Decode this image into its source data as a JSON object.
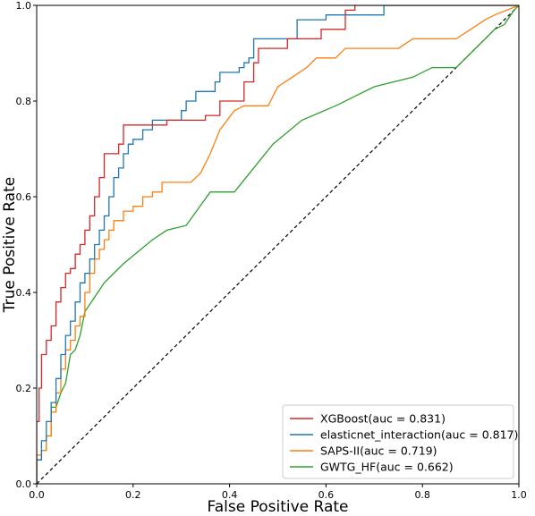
{
  "chart_data": {
    "type": "line",
    "xlabel": "False Positive Rate",
    "ylabel": "True Positive Rate",
    "xlim": [
      0,
      1
    ],
    "ylim": [
      0,
      1
    ],
    "xticks": [
      "0.0",
      "0.2",
      "0.4",
      "0.6",
      "0.8",
      "1.0"
    ],
    "yticks": [
      "0.0",
      "0.2",
      "0.4",
      "0.6",
      "0.8",
      "1.0"
    ],
    "grid": false,
    "legend_position": "bottom-right",
    "diagonal": {
      "style": "dashed",
      "color": "#000000"
    },
    "series": [
      {
        "name": "XGBoost(auc = 0.831)",
        "color": "#d62728",
        "points": [
          [
            0,
            0
          ],
          [
            0,
            0.13
          ],
          [
            0.005,
            0.13
          ],
          [
            0.005,
            0.2
          ],
          [
            0.01,
            0.2
          ],
          [
            0.01,
            0.27
          ],
          [
            0.02,
            0.27
          ],
          [
            0.02,
            0.3
          ],
          [
            0.03,
            0.3
          ],
          [
            0.03,
            0.33
          ],
          [
            0.04,
            0.33
          ],
          [
            0.04,
            0.38
          ],
          [
            0.05,
            0.38
          ],
          [
            0.05,
            0.41
          ],
          [
            0.06,
            0.41
          ],
          [
            0.06,
            0.44
          ],
          [
            0.07,
            0.44
          ],
          [
            0.07,
            0.45
          ],
          [
            0.08,
            0.45
          ],
          [
            0.08,
            0.48
          ],
          [
            0.09,
            0.48
          ],
          [
            0.09,
            0.5
          ],
          [
            0.1,
            0.5
          ],
          [
            0.1,
            0.53
          ],
          [
            0.11,
            0.53
          ],
          [
            0.11,
            0.56
          ],
          [
            0.12,
            0.56
          ],
          [
            0.12,
            0.6
          ],
          [
            0.13,
            0.6
          ],
          [
            0.13,
            0.64
          ],
          [
            0.14,
            0.64
          ],
          [
            0.14,
            0.69
          ],
          [
            0.17,
            0.69
          ],
          [
            0.17,
            0.71
          ],
          [
            0.18,
            0.71
          ],
          [
            0.18,
            0.75
          ],
          [
            0.27,
            0.75
          ],
          [
            0.27,
            0.76
          ],
          [
            0.35,
            0.76
          ],
          [
            0.35,
            0.77
          ],
          [
            0.38,
            0.77
          ],
          [
            0.38,
            0.8
          ],
          [
            0.43,
            0.8
          ],
          [
            0.43,
            0.84
          ],
          [
            0.45,
            0.84
          ],
          [
            0.45,
            0.88
          ],
          [
            0.46,
            0.88
          ],
          [
            0.46,
            0.91
          ],
          [
            0.52,
            0.91
          ],
          [
            0.52,
            0.93
          ],
          [
            0.59,
            0.93
          ],
          [
            0.59,
            0.95
          ],
          [
            0.64,
            0.95
          ],
          [
            0.64,
            0.99
          ],
          [
            0.66,
            0.99
          ],
          [
            0.66,
            1
          ],
          [
            1,
            1
          ]
        ]
      },
      {
        "name": "elasticnet_interaction(auc = 0.817)",
        "color": "#1f77b4",
        "points": [
          [
            0,
            0
          ],
          [
            0,
            0.05
          ],
          [
            0.01,
            0.05
          ],
          [
            0.01,
            0.09
          ],
          [
            0.02,
            0.09
          ],
          [
            0.02,
            0.13
          ],
          [
            0.03,
            0.13
          ],
          [
            0.03,
            0.17
          ],
          [
            0.04,
            0.17
          ],
          [
            0.04,
            0.22
          ],
          [
            0.05,
            0.22
          ],
          [
            0.05,
            0.27
          ],
          [
            0.06,
            0.27
          ],
          [
            0.06,
            0.31
          ],
          [
            0.07,
            0.31
          ],
          [
            0.07,
            0.34
          ],
          [
            0.08,
            0.34
          ],
          [
            0.08,
            0.38
          ],
          [
            0.09,
            0.38
          ],
          [
            0.09,
            0.42
          ],
          [
            0.1,
            0.42
          ],
          [
            0.1,
            0.44
          ],
          [
            0.11,
            0.44
          ],
          [
            0.11,
            0.47
          ],
          [
            0.12,
            0.47
          ],
          [
            0.12,
            0.5
          ],
          [
            0.13,
            0.5
          ],
          [
            0.13,
            0.53
          ],
          [
            0.14,
            0.53
          ],
          [
            0.14,
            0.56
          ],
          [
            0.15,
            0.56
          ],
          [
            0.15,
            0.6
          ],
          [
            0.16,
            0.6
          ],
          [
            0.16,
            0.64
          ],
          [
            0.17,
            0.64
          ],
          [
            0.17,
            0.66
          ],
          [
            0.18,
            0.66
          ],
          [
            0.18,
            0.69
          ],
          [
            0.19,
            0.69
          ],
          [
            0.19,
            0.71
          ],
          [
            0.2,
            0.71
          ],
          [
            0.2,
            0.72
          ],
          [
            0.22,
            0.72
          ],
          [
            0.22,
            0.74
          ],
          [
            0.24,
            0.74
          ],
          [
            0.24,
            0.76
          ],
          [
            0.3,
            0.76
          ],
          [
            0.3,
            0.78
          ],
          [
            0.31,
            0.78
          ],
          [
            0.31,
            0.8
          ],
          [
            0.33,
            0.8
          ],
          [
            0.33,
            0.82
          ],
          [
            0.37,
            0.82
          ],
          [
            0.37,
            0.84
          ],
          [
            0.38,
            0.84
          ],
          [
            0.38,
            0.86
          ],
          [
            0.42,
            0.86
          ],
          [
            0.42,
            0.87
          ],
          [
            0.43,
            0.87
          ],
          [
            0.43,
            0.88
          ],
          [
            0.44,
            0.88
          ],
          [
            0.44,
            0.89
          ],
          [
            0.45,
            0.89
          ],
          [
            0.45,
            0.93
          ],
          [
            0.54,
            0.93
          ],
          [
            0.54,
            0.97
          ],
          [
            0.6,
            0.97
          ],
          [
            0.6,
            0.98
          ],
          [
            0.72,
            0.98
          ],
          [
            0.72,
            1
          ],
          [
            1,
            1
          ]
        ]
      },
      {
        "name": "SAPS-II(auc = 0.719)",
        "color": "#ff7f0e",
        "points": [
          [
            0,
            0
          ],
          [
            0,
            0.06
          ],
          [
            0.01,
            0.06
          ],
          [
            0.01,
            0.07
          ],
          [
            0.02,
            0.07
          ],
          [
            0.02,
            0.1
          ],
          [
            0.03,
            0.1
          ],
          [
            0.03,
            0.15
          ],
          [
            0.04,
            0.15
          ],
          [
            0.04,
            0.19
          ],
          [
            0.05,
            0.19
          ],
          [
            0.05,
            0.24
          ],
          [
            0.06,
            0.24
          ],
          [
            0.06,
            0.28
          ],
          [
            0.07,
            0.28
          ],
          [
            0.07,
            0.3
          ],
          [
            0.08,
            0.3
          ],
          [
            0.08,
            0.33
          ],
          [
            0.09,
            0.33
          ],
          [
            0.09,
            0.35
          ],
          [
            0.1,
            0.35
          ],
          [
            0.1,
            0.4
          ],
          [
            0.11,
            0.4
          ],
          [
            0.11,
            0.44
          ],
          [
            0.12,
            0.44
          ],
          [
            0.12,
            0.47
          ],
          [
            0.13,
            0.47
          ],
          [
            0.13,
            0.49
          ],
          [
            0.14,
            0.49
          ],
          [
            0.14,
            0.51
          ],
          [
            0.15,
            0.51
          ],
          [
            0.15,
            0.53
          ],
          [
            0.16,
            0.53
          ],
          [
            0.16,
            0.55
          ],
          [
            0.18,
            0.55
          ],
          [
            0.18,
            0.57
          ],
          [
            0.2,
            0.57
          ],
          [
            0.2,
            0.58
          ],
          [
            0.22,
            0.58
          ],
          [
            0.22,
            0.6
          ],
          [
            0.24,
            0.6
          ],
          [
            0.24,
            0.61
          ],
          [
            0.26,
            0.61
          ],
          [
            0.26,
            0.63
          ],
          [
            0.32,
            0.63
          ],
          [
            0.34,
            0.65
          ],
          [
            0.36,
            0.69
          ],
          [
            0.38,
            0.74
          ],
          [
            0.41,
            0.78
          ],
          [
            0.43,
            0.79
          ],
          [
            0.48,
            0.79
          ],
          [
            0.5,
            0.83
          ],
          [
            0.53,
            0.85
          ],
          [
            0.56,
            0.87
          ],
          [
            0.58,
            0.89
          ],
          [
            0.62,
            0.89
          ],
          [
            0.64,
            0.91
          ],
          [
            0.7,
            0.91
          ],
          [
            0.75,
            0.91
          ],
          [
            0.78,
            0.93
          ],
          [
            0.83,
            0.93
          ],
          [
            0.87,
            0.93
          ],
          [
            0.9,
            0.95
          ],
          [
            0.93,
            0.97
          ],
          [
            0.95,
            0.98
          ],
          [
            1,
            1
          ]
        ]
      },
      {
        "name": "GWTG_HF(auc = 0.662)",
        "color": "#2ca02c",
        "points": [
          [
            0,
            0
          ],
          [
            0,
            0.05
          ],
          [
            0.01,
            0.05
          ],
          [
            0.01,
            0.07
          ],
          [
            0.02,
            0.07
          ],
          [
            0.02,
            0.1
          ],
          [
            0.03,
            0.1
          ],
          [
            0.03,
            0.16
          ],
          [
            0.04,
            0.16
          ],
          [
            0.05,
            0.19
          ],
          [
            0.06,
            0.21
          ],
          [
            0.07,
            0.27
          ],
          [
            0.08,
            0.28
          ],
          [
            0.09,
            0.31
          ],
          [
            0.1,
            0.36
          ],
          [
            0.12,
            0.39
          ],
          [
            0.14,
            0.42
          ],
          [
            0.18,
            0.46
          ],
          [
            0.24,
            0.51
          ],
          [
            0.27,
            0.53
          ],
          [
            0.31,
            0.54
          ],
          [
            0.36,
            0.61
          ],
          [
            0.41,
            0.61
          ],
          [
            0.49,
            0.71
          ],
          [
            0.55,
            0.76
          ],
          [
            0.62,
            0.79
          ],
          [
            0.7,
            0.83
          ],
          [
            0.78,
            0.85
          ],
          [
            0.82,
            0.87
          ],
          [
            0.87,
            0.87
          ],
          [
            0.9,
            0.9
          ],
          [
            0.93,
            0.93
          ],
          [
            0.95,
            0.95
          ],
          [
            0.97,
            0.96
          ],
          [
            0.99,
            0.99
          ],
          [
            1,
            1
          ]
        ]
      }
    ]
  }
}
